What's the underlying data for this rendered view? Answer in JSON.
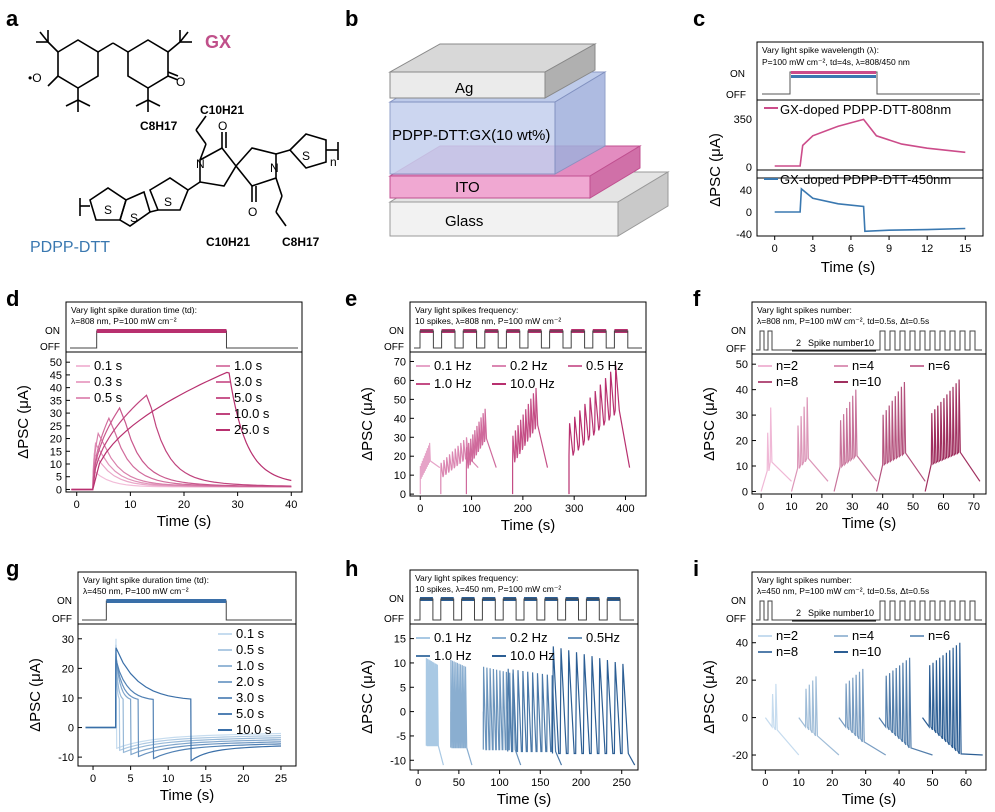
{
  "panel_letters": [
    "a",
    "b",
    "c",
    "d",
    "e",
    "f",
    "g",
    "h",
    "i"
  ],
  "colors": {
    "magenta": "#cc4c8a",
    "magenta_dark": "#b8306f",
    "blue": "#3a78b0",
    "blue_light": "#8bb6d8",
    "pink_light": "#e8a6c8",
    "gx": "#c0508a",
    "pdpp": "#3a78b0"
  },
  "panel_a": {
    "gx_label": "GX",
    "pdpp_label": "PDPP-DTT",
    "sub_c8": "C8H17",
    "sub_c10": "C10H21",
    "n": "n"
  },
  "panel_b": {
    "layers": [
      "Ag",
      "PDPP-DTT:GX(10 wt%)",
      "ITO",
      "Glass"
    ]
  },
  "panel_c": {
    "legend_lines": [
      "Vary light spike wavelength (λ):",
      "P=100 mW cm⁻², td=4s, λ=808/450 nm"
    ],
    "on": "ON",
    "off": "OFF",
    "trace1": "GX-doped PDPP-DTT-808nm",
    "trace2": "GX-doped PDPP-DTT-450nm",
    "ylabel": "ΔPSC (μA)",
    "xlabel": "Time (s)",
    "yticks_top": [
      "350",
      "0"
    ],
    "yticks_bot": [
      "40",
      "0",
      "-40"
    ],
    "xticks": [
      "0",
      "3",
      "6",
      "9",
      "12",
      "15"
    ]
  },
  "panel_d": {
    "legend_lines": [
      "Vary light spike duration time (td):",
      "λ=808 nm, P=100 mW cm⁻²"
    ],
    "on": "ON",
    "off": "OFF",
    "series_left": [
      "0.1 s",
      "0.3 s",
      "0.5 s"
    ],
    "series_right": [
      "1.0 s",
      "3.0 s",
      "5.0 s",
      "10.0 s",
      "25.0 s"
    ],
    "ylabel": "ΔPSC (μA)",
    "xlabel": "Time (s)",
    "yticks": [
      "0",
      "5",
      "10",
      "15",
      "20",
      "25",
      "30",
      "35",
      "40",
      "45",
      "50"
    ],
    "xticks": [
      "0",
      "10",
      "20",
      "30",
      "40"
    ]
  },
  "panel_e": {
    "legend_lines": [
      "Vary light spikes frequency:",
      "10 spikes, λ=808 nm, P=100 mW cm⁻²"
    ],
    "on": "ON",
    "off": "OFF",
    "series": [
      "0.1 Hz",
      "0.2 Hz",
      "0.5 Hz",
      "1.0 Hz",
      "10.0 Hz"
    ],
    "ylabel": "ΔPSC (μA)",
    "xlabel": "Time (s)",
    "yticks": [
      "0",
      "10",
      "20",
      "30",
      "40",
      "50",
      "60",
      "70"
    ],
    "xticks": [
      "0",
      "100",
      "200",
      "300",
      "400"
    ]
  },
  "panel_f": {
    "legend_lines": [
      "Vary light spikes number:",
      "λ=808 nm, P=100 mW cm⁻², td=0.5s, Δt=0.5s"
    ],
    "on": "ON",
    "off": "OFF",
    "spike_from": "2",
    "spike_label": "Spike number",
    "spike_to": "10",
    "series": [
      "n=2",
      "n=4",
      "n=6",
      "n=8",
      "n=10"
    ],
    "ylabel": "ΔPSC (μA)",
    "xlabel": "Time (s)",
    "yticks": [
      "0",
      "10",
      "20",
      "30",
      "40",
      "50"
    ],
    "xticks": [
      "0",
      "10",
      "20",
      "30",
      "40",
      "50",
      "60",
      "70"
    ]
  },
  "panel_g": {
    "legend_lines": [
      "Vary light spike duration time (td):",
      "λ=450 nm, P=100 mW cm⁻²"
    ],
    "on": "ON",
    "off": "OFF",
    "series": [
      "0.1 s",
      "0.5 s",
      "1.0 s",
      "2.0 s",
      "3.0 s",
      "5.0 s",
      "10.0 s"
    ],
    "ylabel": "ΔPSC (μA)",
    "xlabel": "Time (s)",
    "yticks": [
      "-10",
      "0",
      "10",
      "20",
      "30"
    ],
    "xticks": [
      "0",
      "5",
      "10",
      "15",
      "20",
      "25"
    ]
  },
  "panel_h": {
    "legend_lines": [
      "Vary light spikes frequency:",
      "10 spikes, λ=450 nm, P=100 mW cm⁻²"
    ],
    "on": "ON",
    "off": "OFF",
    "series": [
      "0.1 Hz",
      "0.2 Hz",
      "0.5Hz",
      "1.0 Hz",
      "10.0 Hz"
    ],
    "ylabel": "ΔPSC (μA)",
    "xlabel": "Time (s)",
    "yticks": [
      "-10",
      "-5",
      "0",
      "5",
      "10",
      "15"
    ],
    "xticks": [
      "0",
      "50",
      "100",
      "150",
      "200",
      "250"
    ]
  },
  "panel_i": {
    "legend_lines": [
      "Vary light spikes number:",
      "λ=450 nm, P=100 mW cm⁻², td=0.5s, Δt=0.5s"
    ],
    "on": "ON",
    "off": "OFF",
    "spike_from": "2",
    "spike_label": "Spike number",
    "spike_to": "10",
    "series": [
      "n=2",
      "n=4",
      "n=6",
      "n=8",
      "n=10"
    ],
    "ylabel": "ΔPSC (μA)",
    "xlabel": "Time (s)",
    "yticks": [
      "-20",
      "0",
      "20",
      "40"
    ],
    "xticks": [
      "0",
      "10",
      "20",
      "30",
      "40",
      "50",
      "60"
    ]
  },
  "chart_data": [
    {
      "type": "line",
      "panel": "c",
      "xlabel": "Time (s)",
      "ylabel": "ΔPSC (μA)",
      "xlim": [
        -1,
        16
      ],
      "series": [
        {
          "name": "GX-doped PDPP-DTT-808nm",
          "x": [
            0,
            2,
            2.2,
            3,
            5,
            7,
            8,
            10,
            12,
            15
          ],
          "y": [
            0,
            0,
            150,
            220,
            290,
            340,
            220,
            160,
            130,
            100
          ]
        },
        {
          "name": "GX-doped PDPP-DTT-450nm",
          "x": [
            0,
            2,
            2.1,
            3,
            5,
            7,
            7.1,
            9,
            12,
            15
          ],
          "y": [
            0,
            0,
            42,
            25,
            15,
            10,
            -35,
            -33,
            -32,
            -30
          ]
        }
      ]
    },
    {
      "type": "line",
      "panel": "d",
      "xlabel": "Time (s)",
      "ylabel": "ΔPSC (μA)",
      "xlim": [
        -2,
        42
      ],
      "ylim": [
        -1,
        54
      ],
      "series": [
        {
          "name": "0.1 s",
          "peak": 7.5
        },
        {
          "name": "0.3 s",
          "peak": 14
        },
        {
          "name": "0.5 s",
          "peak": 18
        },
        {
          "name": "1.0 s",
          "peak": 22
        },
        {
          "name": "3.0 s",
          "peak": 28
        },
        {
          "name": "5.0 s",
          "peak": 32
        },
        {
          "name": "10.0 s",
          "peak": 37
        },
        {
          "name": "25.0 s",
          "peak": 46
        }
      ]
    },
    {
      "type": "line",
      "panel": "e",
      "xlabel": "Time (s)",
      "ylabel": "ΔPSC (μA)",
      "xlim": [
        -20,
        440
      ],
      "ylim": [
        -1,
        75
      ],
      "series": [
        {
          "name": "0.1 Hz",
          "peak": 27
        },
        {
          "name": "0.2 Hz",
          "peak": 30
        },
        {
          "name": "0.5 Hz",
          "peak": 45
        },
        {
          "name": "1.0 Hz",
          "peak": 56
        },
        {
          "name": "10.0 Hz",
          "peak": 68
        }
      ]
    },
    {
      "type": "line",
      "panel": "f",
      "xlabel": "Time (s)",
      "ylabel": "ΔPSC (μA)",
      "xlim": [
        -3,
        74
      ],
      "ylim": [
        -1,
        54
      ],
      "series": [
        {
          "name": "n=2",
          "peak": 33
        },
        {
          "name": "n=4",
          "peak": 37
        },
        {
          "name": "n=6",
          "peak": 40
        },
        {
          "name": "n=8",
          "peak": 43
        },
        {
          "name": "n=10",
          "peak": 44
        }
      ]
    },
    {
      "type": "line",
      "panel": "g",
      "xlabel": "Time (s)",
      "ylabel": "ΔPSC (μA)",
      "xlim": [
        -2,
        27
      ],
      "ylim": [
        -13,
        35
      ],
      "series": [
        {
          "name": "0.1 s",
          "peak": 30
        },
        {
          "name": "0.5 s",
          "peak": 28
        },
        {
          "name": "1.0 s",
          "peak": 26
        },
        {
          "name": "2.0 s",
          "peak": 25
        },
        {
          "name": "3.0 s",
          "peak": 24
        },
        {
          "name": "5.0 s",
          "peak": 23
        },
        {
          "name": "10.0 s",
          "peak": 27
        }
      ]
    },
    {
      "type": "line",
      "panel": "h",
      "xlabel": "Time (s)",
      "ylabel": "ΔPSC (μA)",
      "xlim": [
        -10,
        270
      ],
      "ylim": [
        -12,
        18
      ],
      "series": [
        {
          "name": "0.1 Hz",
          "peak": 11
        },
        {
          "name": "0.2 Hz",
          "peak": 11
        },
        {
          "name": "0.5Hz",
          "peak": 10
        },
        {
          "name": "1.0 Hz",
          "peak": 10
        },
        {
          "name": "10.0 Hz",
          "peak": 15
        }
      ]
    },
    {
      "type": "line",
      "panel": "i",
      "xlabel": "Time (s)",
      "ylabel": "ΔPSC (μA)",
      "xlim": [
        -4,
        66
      ],
      "ylim": [
        -28,
        50
      ],
      "series": [
        {
          "name": "n=2",
          "peak": 18
        },
        {
          "name": "n=4",
          "peak": 22
        },
        {
          "name": "n=6",
          "peak": 26
        },
        {
          "name": "n=8",
          "peak": 32
        },
        {
          "name": "n=10",
          "peak": 40
        }
      ]
    }
  ]
}
